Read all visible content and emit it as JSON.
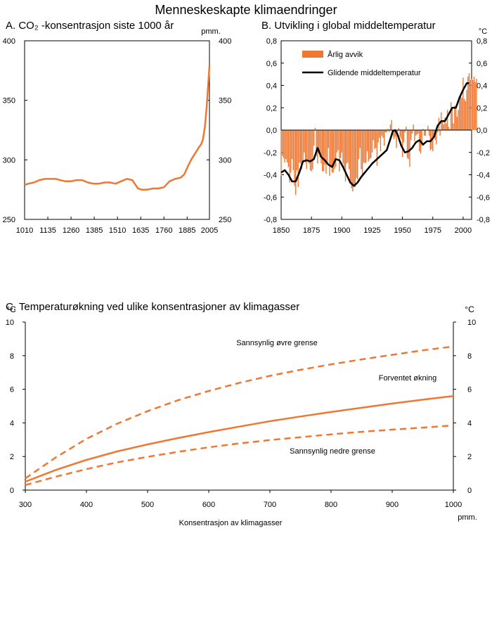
{
  "figure_title": "Menneskeskapte klimaendringer",
  "colors": {
    "orange": "#ee7733",
    "black": "#000000",
    "axis": "#000000"
  },
  "chart_data": [
    {
      "id": "A",
      "type": "line",
      "title": "A.  CO₂ -konsentrasjon siste 1000 år",
      "unit": "pmm.",
      "x_ticks": [
        1010,
        1135,
        1260,
        1385,
        1510,
        1635,
        1760,
        1885,
        2005
      ],
      "y_ticks": [
        250,
        300,
        350,
        400
      ],
      "xlim": [
        1010,
        2005
      ],
      "ylim": [
        250,
        400
      ],
      "series": [
        {
          "x": [
            1010,
            1030,
            1060,
            1090,
            1120,
            1150,
            1180,
            1200,
            1230,
            1260,
            1290,
            1320,
            1350,
            1380,
            1410,
            1440,
            1470,
            1500,
            1530,
            1560,
            1590,
            1620,
            1640,
            1670,
            1700,
            1730,
            1760,
            1790,
            1820,
            1850,
            1870,
            1890,
            1910,
            1930,
            1950,
            1960,
            1970,
            1980,
            1990,
            2005
          ],
          "y": [
            279,
            280,
            281,
            283,
            284,
            284,
            284,
            283,
            282,
            282,
            283,
            283,
            281,
            280,
            280,
            281,
            281,
            280,
            282,
            284,
            283,
            276,
            275,
            275,
            276,
            276,
            277,
            282,
            284,
            285,
            288,
            295,
            301,
            306,
            311,
            313,
            317,
            327,
            344,
            379
          ]
        }
      ]
    },
    {
      "id": "B",
      "type": "bar",
      "title": "B.  Utvikling i global middeltemperatur",
      "unit": "°C",
      "x_ticks": [
        1850,
        1875,
        1900,
        1925,
        1950,
        1975,
        2000
      ],
      "y_ticks": [
        "-0,8",
        "-0,6",
        "-0,4",
        "-0,2",
        "0,0",
        "0,2",
        "0,4",
        "0,6",
        "0,8"
      ],
      "xlim": [
        1850,
        2007
      ],
      "ylim": [
        -0.8,
        0.8
      ],
      "legend": [
        "Årlig avvik",
        "Glidende middeltemperatur"
      ],
      "legend_position": "top-left",
      "annual_start_year": 1850,
      "annual": [
        -0.41,
        -0.23,
        -0.25,
        -0.29,
        -0.26,
        -0.29,
        -0.33,
        -0.47,
        -0.38,
        -0.26,
        -0.36,
        -0.5,
        -0.58,
        -0.36,
        -0.51,
        -0.29,
        -0.3,
        -0.35,
        -0.29,
        -0.2,
        -0.29,
        -0.35,
        -0.28,
        -0.3,
        -0.36,
        -0.37,
        -0.35,
        -0.14,
        0.02,
        -0.23,
        -0.3,
        -0.21,
        -0.24,
        -0.3,
        -0.37,
        -0.37,
        -0.31,
        -0.39,
        -0.29,
        -0.16,
        -0.41,
        -0.33,
        -0.38,
        -0.38,
        -0.35,
        -0.33,
        -0.2,
        -0.18,
        -0.37,
        -0.25,
        -0.2,
        -0.3,
        -0.37,
        -0.46,
        -0.3,
        -0.29,
        -0.35,
        -0.48,
        -0.52,
        -0.55,
        -0.5,
        -0.51,
        -0.43,
        -0.44,
        -0.26,
        -0.16,
        -0.35,
        -0.42,
        -0.29,
        -0.3,
        -0.29,
        -0.19,
        -0.28,
        -0.26,
        -0.25,
        -0.2,
        -0.09,
        -0.17,
        -0.16,
        -0.32,
        -0.11,
        -0.07,
        -0.19,
        -0.05,
        -0.07,
        -0.14,
        -0.02,
        -0.02,
        0.01,
        -0.02,
        0.05,
        0.09,
        -0.05,
        -0.08,
        -0.06,
        -0.16,
        -0.02,
        0.02,
        -0.06,
        -0.08,
        -0.24,
        -0.11,
        -0.02,
        0.03,
        -0.25,
        -0.26,
        -0.33,
        -0.09,
        -0.03,
        0.05,
        -0.1,
        -0.05,
        -0.04,
        -0.03,
        -0.19,
        -0.21,
        -0.14,
        0.01,
        -0.05,
        -0.05,
        0.0,
        0.04,
        -0.05,
        -0.18,
        -0.17,
        -0.19,
        -0.07,
        -0.09,
        -0.13,
        -0.02,
        0.11,
        -0.05,
        0.16,
        0.07,
        0.05,
        0.11,
        0.06,
        0.18,
        0.03,
        0.01,
        0.25,
        0.19,
        0.06,
        0.22,
        0.2,
        0.12,
        0.18,
        0.3,
        0.33,
        0.29,
        0.47,
        0.28,
        0.26,
        0.36,
        0.48,
        0.51,
        0.45,
        0.46,
        0.45,
        0.48,
        0.43,
        0.46
      ],
      "smooth_x": [
        1850,
        1853,
        1856,
        1859,
        1862,
        1865,
        1868,
        1871,
        1874,
        1877,
        1880,
        1883,
        1886,
        1889,
        1892,
        1895,
        1898,
        1901,
        1904,
        1907,
        1910,
        1913,
        1916,
        1919,
        1922,
        1925,
        1928,
        1931,
        1934,
        1937,
        1940,
        1942,
        1944,
        1946,
        1949,
        1952,
        1955,
        1958,
        1961,
        1964,
        1967,
        1970,
        1973,
        1976,
        1979,
        1982,
        1985,
        1988,
        1991,
        1994,
        1997,
        2000,
        2003,
        2005
      ],
      "smooth_y": [
        -0.38,
        -0.36,
        -0.4,
        -0.46,
        -0.46,
        -0.38,
        -0.28,
        -0.27,
        -0.28,
        -0.26,
        -0.16,
        -0.24,
        -0.27,
        -0.31,
        -0.33,
        -0.26,
        -0.27,
        -0.33,
        -0.4,
        -0.47,
        -0.5,
        -0.47,
        -0.42,
        -0.38,
        -0.34,
        -0.3,
        -0.27,
        -0.24,
        -0.21,
        -0.18,
        -0.08,
        -0.01,
        0.0,
        -0.04,
        -0.14,
        -0.2,
        -0.19,
        -0.16,
        -0.11,
        -0.09,
        -0.13,
        -0.1,
        -0.1,
        -0.06,
        0.04,
        0.08,
        0.08,
        0.14,
        0.2,
        0.2,
        0.29,
        0.36,
        0.42,
        0.42
      ]
    },
    {
      "id": "C",
      "type": "line",
      "title": "C.  Temperaturøkning ved ulike konsentrasjoner av klimagasser",
      "xlabel": "Konsentrasjon av klimagasser",
      "x_unit": "pmm.",
      "y_unit": "°C",
      "x_ticks": [
        300,
        400,
        500,
        600,
        700,
        800,
        900,
        1000
      ],
      "y_ticks": [
        0,
        2,
        4,
        6,
        8,
        10
      ],
      "xlim": [
        300,
        1000
      ],
      "ylim": [
        0,
        10
      ],
      "series": [
        {
          "name": "Sannsynlig øvre grense",
          "style": "dashed",
          "x": [
            300,
            350,
            400,
            450,
            500,
            550,
            600,
            650,
            700,
            750,
            800,
            850,
            900,
            950,
            1000
          ],
          "y": [
            0.7,
            1.95,
            3.05,
            3.95,
            4.7,
            5.35,
            5.9,
            6.38,
            6.8,
            7.16,
            7.48,
            7.78,
            8.05,
            8.32,
            8.55
          ]
        },
        {
          "name": "Forventet økning",
          "style": "solid",
          "x": [
            300,
            350,
            400,
            450,
            500,
            550,
            600,
            650,
            700,
            750,
            800,
            850,
            900,
            950,
            1000
          ],
          "y": [
            0.5,
            1.2,
            1.8,
            2.3,
            2.72,
            3.1,
            3.45,
            3.78,
            4.1,
            4.38,
            4.65,
            4.9,
            5.15,
            5.38,
            5.6
          ]
        },
        {
          "name": "Sannsynlig nedre grense",
          "style": "dashed",
          "x": [
            300,
            350,
            400,
            450,
            500,
            550,
            600,
            650,
            700,
            750,
            800,
            850,
            900,
            950,
            1000
          ],
          "y": [
            0.3,
            0.8,
            1.25,
            1.65,
            1.98,
            2.28,
            2.55,
            2.78,
            2.98,
            3.15,
            3.32,
            3.47,
            3.6,
            3.72,
            3.85
          ]
        }
      ]
    }
  ]
}
